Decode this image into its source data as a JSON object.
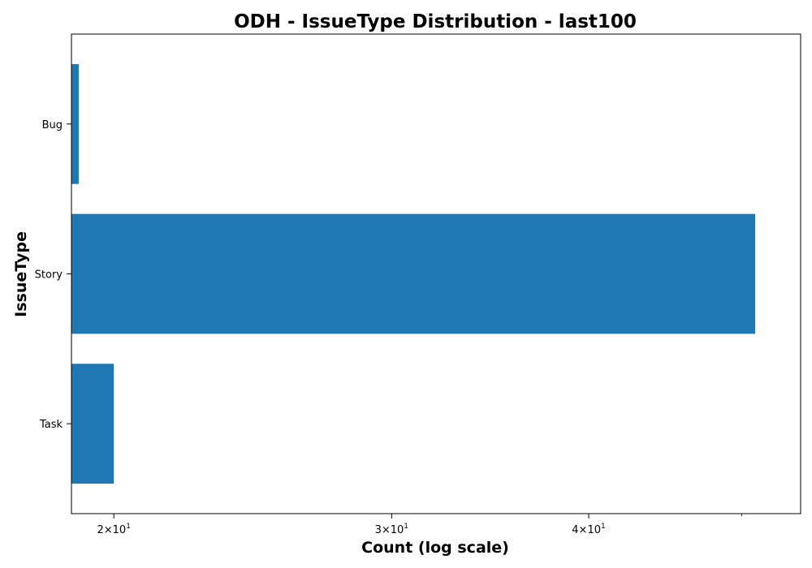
{
  "chart_data": {
    "type": "bar",
    "orientation": "horizontal",
    "title": "ODH - IssueType Distribution - last100",
    "xlabel": "Count (log scale)",
    "ylabel": "IssueType",
    "x_scale": "log",
    "xlim": [
      18.8,
      54.5
    ],
    "categories": [
      "Bug",
      "Story",
      "Task"
    ],
    "values": [
      19,
      51,
      20
    ],
    "bar_color": "#1f77b4",
    "x_major_ticks": [
      {
        "value": 20,
        "label_base": "2×10",
        "label_exp": "1"
      },
      {
        "value": 30,
        "label_base": "3×10",
        "label_exp": "1"
      },
      {
        "value": 40,
        "label_base": "4×10",
        "label_exp": "1"
      }
    ],
    "x_minor_ticks": [
      50
    ],
    "grid": false,
    "legend": "none"
  }
}
